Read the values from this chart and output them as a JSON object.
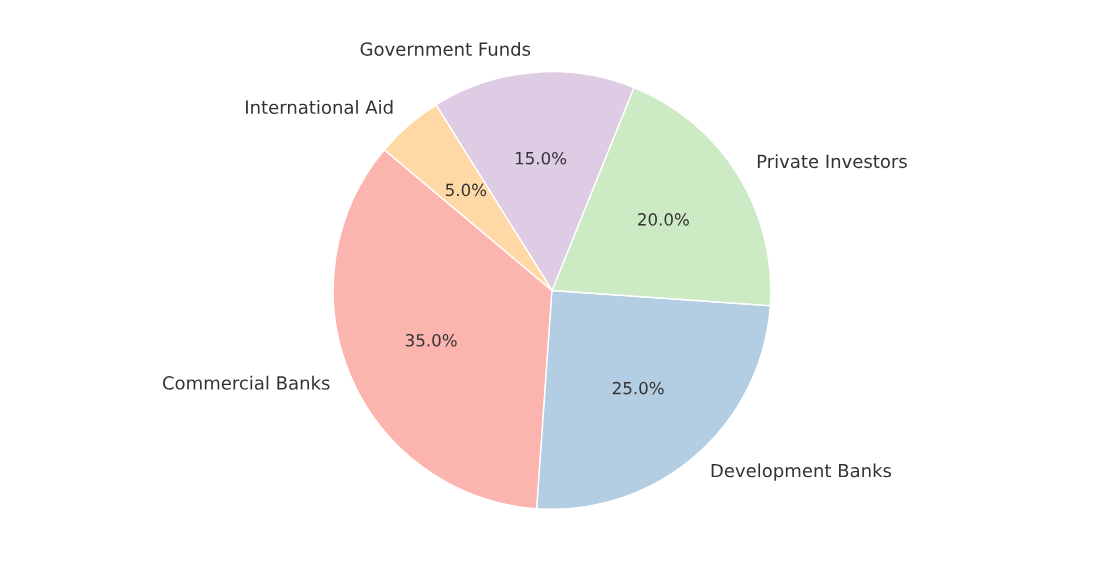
{
  "chart_data": {
    "type": "pie",
    "categories": [
      "Commercial Banks",
      "Development Banks",
      "Private Investors",
      "Government Funds",
      "International Aid"
    ],
    "values": [
      35,
      25,
      20,
      15,
      5
    ],
    "colors": [
      "#fbb4ae",
      "#b3cde3",
      "#ccebc5",
      "#decbe4",
      "#fed9a6"
    ],
    "value_labels": [
      "35.0%",
      "25.0%",
      "20.0%",
      "15.0%",
      "5.0%"
    ]
  }
}
